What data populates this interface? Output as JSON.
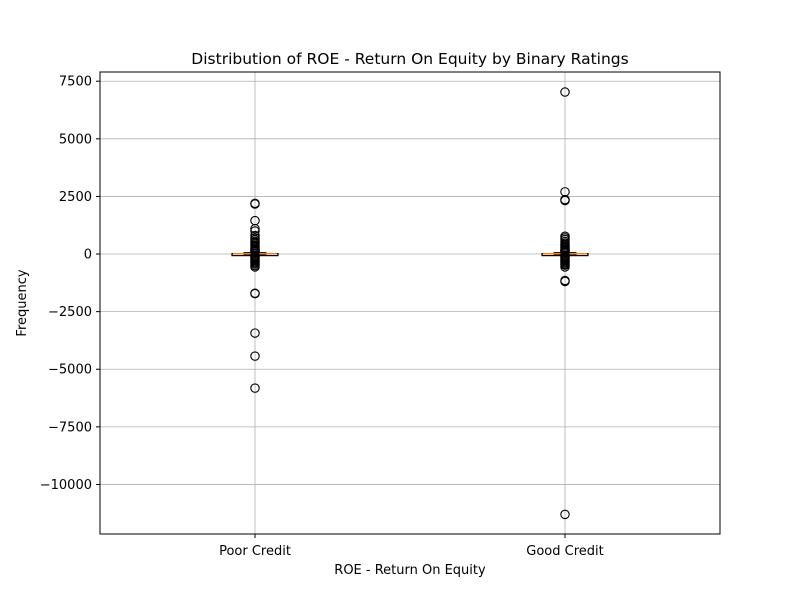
{
  "chart_data": {
    "type": "box",
    "title": "Distribution of ROE - Return On Equity by Binary Ratings",
    "xlabel": "ROE - Return On Equity",
    "ylabel": "Frequency",
    "ylim": [
      -12150,
      7900
    ],
    "yticks": [
      7500,
      5000,
      2500,
      0,
      -2500,
      -5000,
      -7500,
      -10000
    ],
    "ytick_labels": [
      "7500",
      "5000",
      "2500",
      "0",
      "−2500",
      "−5000",
      "−7500",
      "−10000"
    ],
    "grid": true,
    "categories": [
      "Poor Credit",
      "Good Credit"
    ],
    "boxes": [
      {
        "name": "Poor Credit",
        "whisker_low": -40,
        "q1": 3,
        "median": 10,
        "q3": 18,
        "whisker_high": 60,
        "fliers": [
          2200,
          2170,
          1450,
          1100,
          1000,
          800,
          700,
          620,
          550,
          500,
          430,
          370,
          310,
          250,
          200,
          160,
          130,
          105,
          85,
          -70,
          -100,
          -140,
          -180,
          -230,
          -280,
          -330,
          -380,
          -430,
          -500,
          -560,
          -1700,
          -1720,
          -3430,
          -4430,
          -5820
        ]
      },
      {
        "name": "Good Credit",
        "whisker_low": -40,
        "q1": 3,
        "median": 10,
        "q3": 18,
        "whisker_high": 60,
        "fliers": [
          7030,
          2700,
          2360,
          2320,
          770,
          700,
          630,
          550,
          480,
          420,
          360,
          300,
          250,
          200,
          160,
          130,
          105,
          85,
          -70,
          -100,
          -140,
          -180,
          -230,
          -280,
          -330,
          -380,
          -430,
          -480,
          -560,
          -1150,
          -1190,
          -11300
        ]
      }
    ],
    "colors": {
      "box": "#000000",
      "median": "#ff7f0e",
      "flier": "#000000",
      "grid": "#b0b0b0"
    }
  }
}
